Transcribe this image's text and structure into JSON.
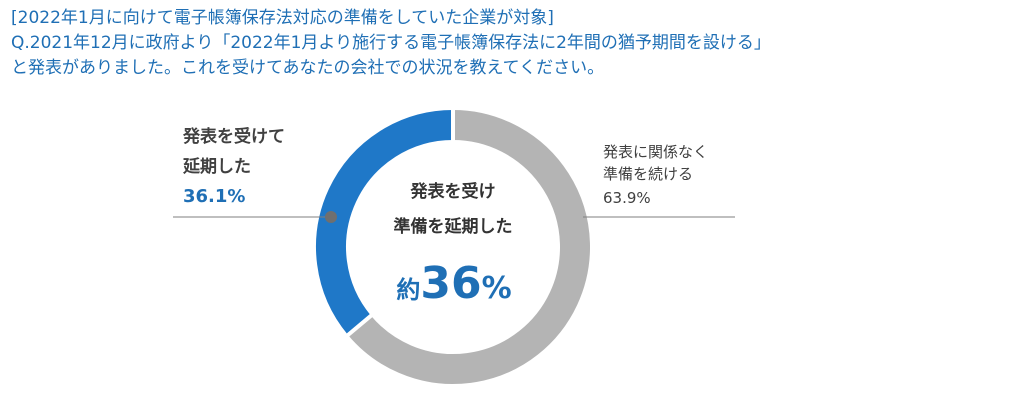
{
  "header": {
    "line1": "[2022年1月に向けて電子帳簿保存法対応の準備をしていた企業が対象]",
    "line2": "Q.2021年12月に政府より「2022年1月より施行する電子帳簿保存法に2年間の猶予期間を設ける」",
    "line3": "と発表がありました。これを受けてあなたの会社での状況を教えてください。"
  },
  "center": {
    "line1": "発表を受け",
    "line2": "準備を延期した",
    "prefix": "約",
    "number": "36",
    "unit": "%"
  },
  "labels": {
    "left_line1": "発表を受けて",
    "left_line2": "延期した",
    "left_pct": "36.1%",
    "right_line1": "発表に関係なく",
    "right_line2": "準備を続ける",
    "right_pct": "63.9%"
  },
  "chart_data": {
    "type": "pie",
    "donut": true,
    "categories": [
      "発表を受けて延期した",
      "発表に関係なく準備を続ける"
    ],
    "values": [
      36.1,
      63.9
    ],
    "colors": [
      "#1f78c8",
      "#b4b4b4"
    ]
  }
}
